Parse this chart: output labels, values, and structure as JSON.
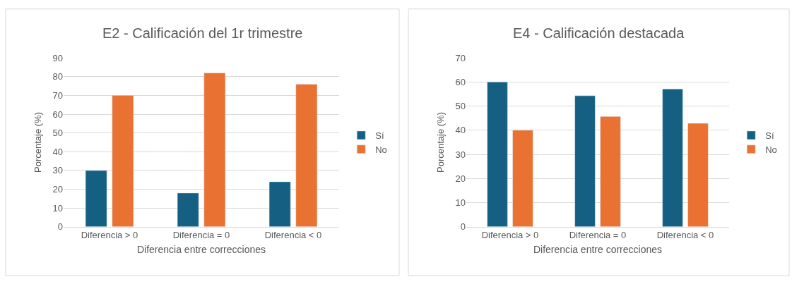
{
  "chart_data": [
    {
      "type": "bar",
      "title": "E2 - Calificación del 1r trimestre",
      "xlabel": "Diferencia entre correcciones",
      "ylabel": "Porcentaje (%)",
      "categories": [
        "Diferencia > 0",
        "Diferencia = 0",
        "Diferencia < 0"
      ],
      "series": [
        {
          "name": "Sí",
          "color": "#156082",
          "values": [
            30,
            18,
            24
          ]
        },
        {
          "name": "No",
          "color": "#e97132",
          "values": [
            70,
            82,
            76
          ]
        }
      ],
      "ylim": [
        0,
        90
      ],
      "yticks": [
        0,
        10,
        20,
        30,
        40,
        50,
        60,
        70,
        80,
        90
      ],
      "grid": "y",
      "legend": "right"
    },
    {
      "type": "bar",
      "title": "E4 - Calificación destacada",
      "xlabel": "Diferencia entre correcciones",
      "ylabel": "Porcentaje (%)",
      "categories": [
        "Diferencia > 0",
        "Diferencia = 0",
        "Diferencia < 0"
      ],
      "series": [
        {
          "name": "Sí",
          "color": "#156082",
          "values": [
            60,
            54.3,
            57.1
          ]
        },
        {
          "name": "No",
          "color": "#e97132",
          "values": [
            40,
            45.7,
            42.9
          ]
        }
      ],
      "ylim": [
        0,
        70
      ],
      "yticks": [
        0,
        10,
        20,
        30,
        40,
        50,
        60,
        70
      ],
      "grid": "y",
      "legend": "right"
    }
  ]
}
